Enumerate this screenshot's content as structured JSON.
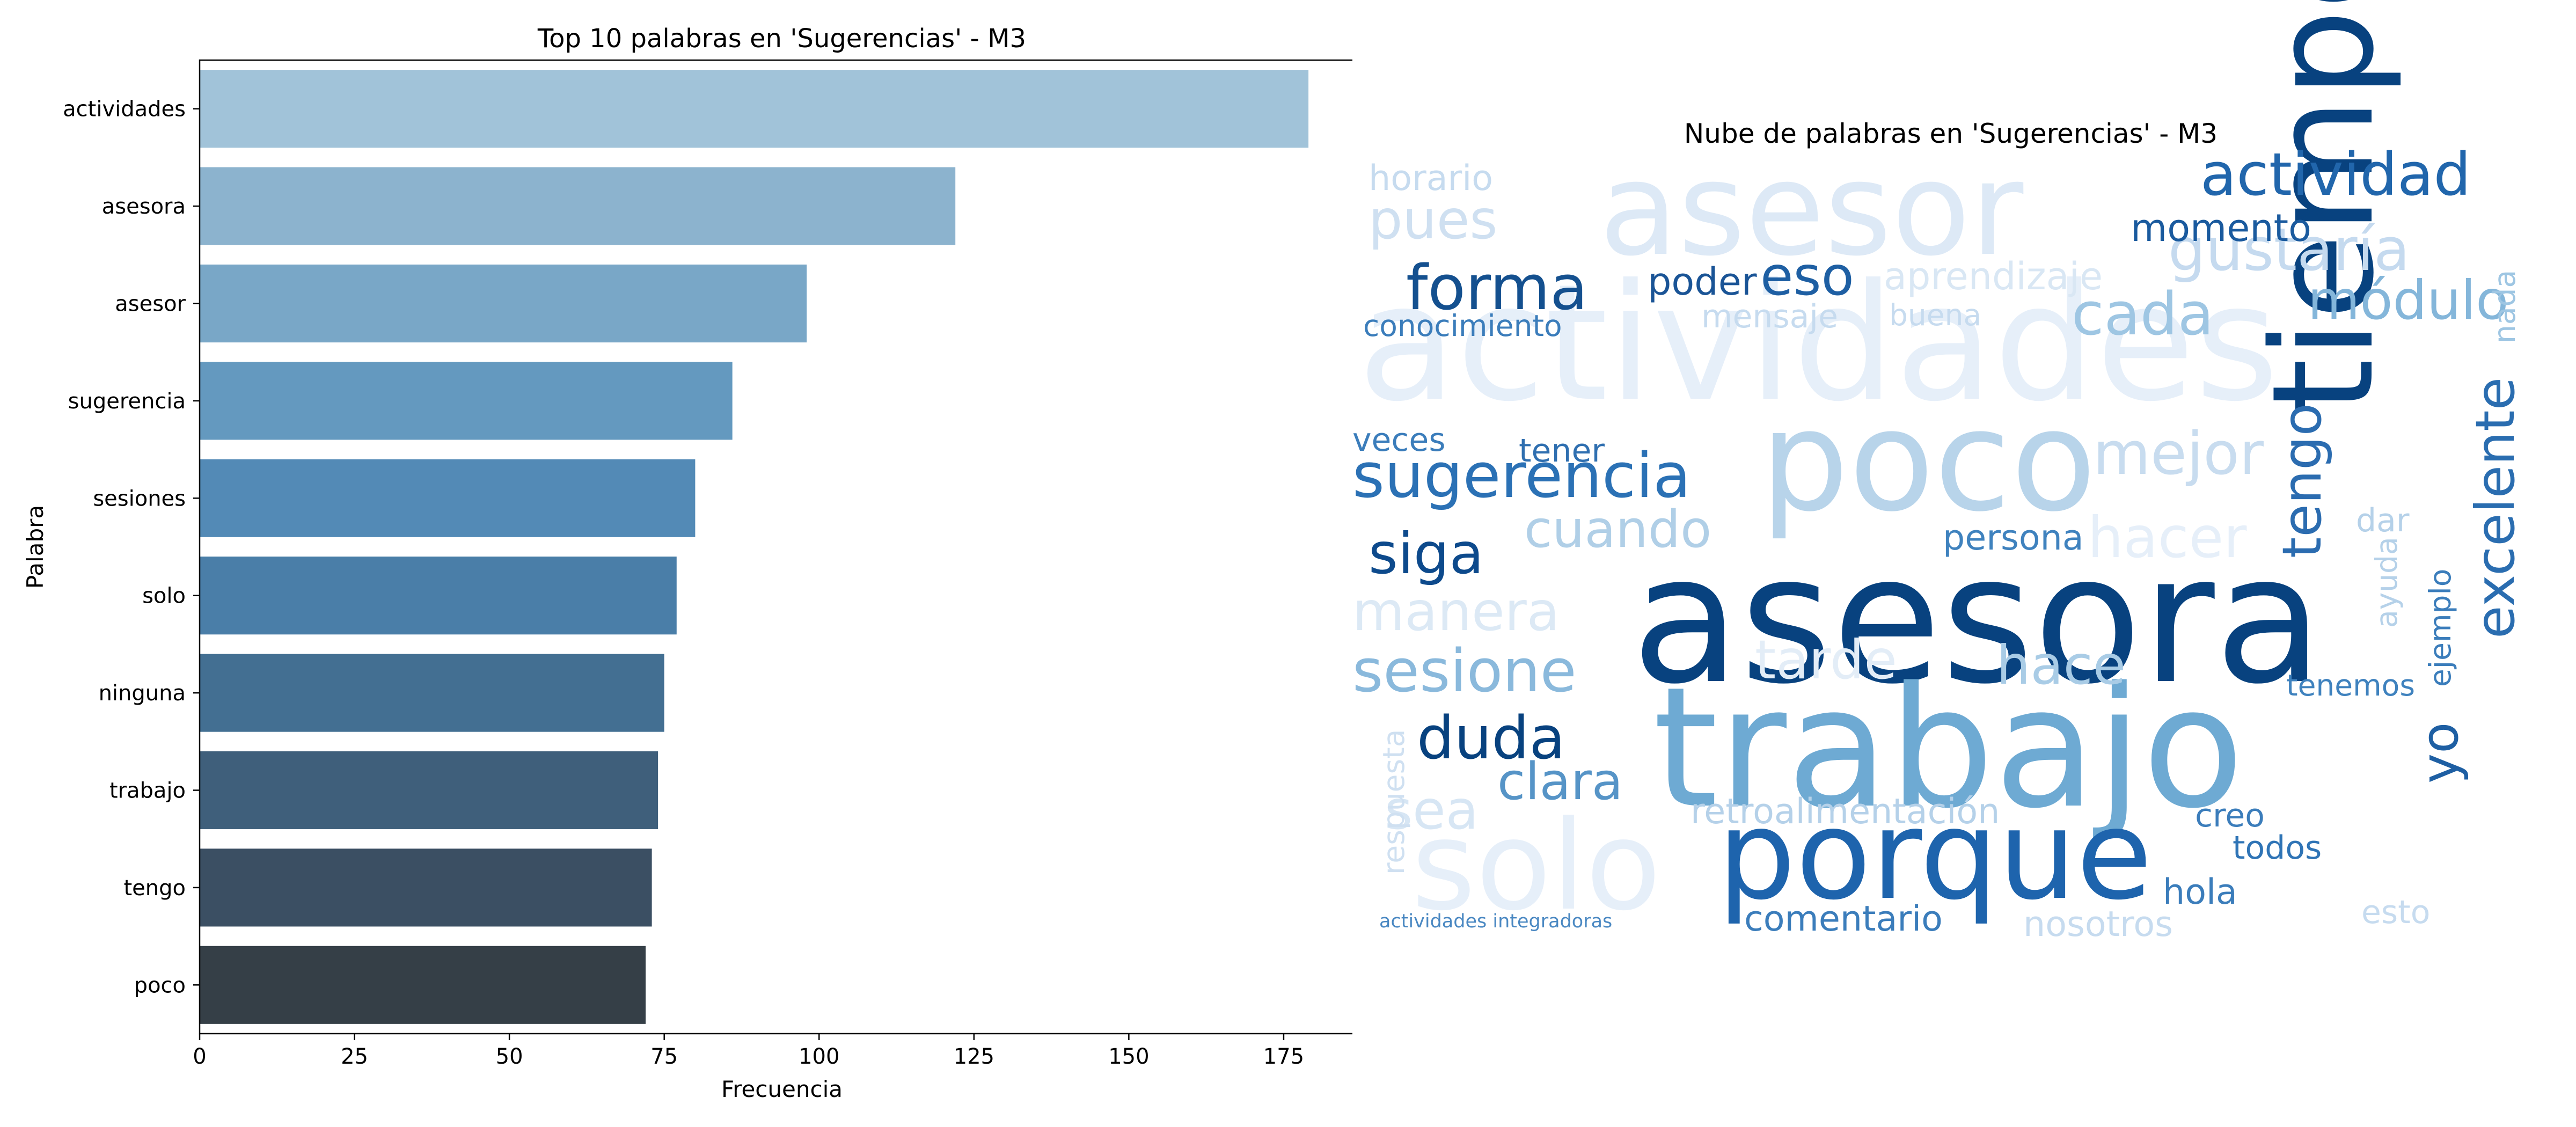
{
  "chart_data": [
    {
      "type": "bar",
      "orientation": "horizontal",
      "title": "Top 10 palabras en 'Sugerencias' - M3",
      "xlabel": "Frecuencia",
      "ylabel": "Palabra",
      "categories": [
        "actividades",
        "asesora",
        "asesor",
        "sugerencia",
        "sesiones",
        "solo",
        "ninguna",
        "trabajo",
        "tengo",
        "poco"
      ],
      "values": [
        179,
        122,
        98,
        86,
        80,
        77,
        75,
        74,
        73,
        72
      ],
      "xlim": [
        0,
        188
      ],
      "xticks": [
        0,
        25,
        50,
        75,
        100,
        125,
        150,
        175
      ],
      "colors": [
        "#a1c3d9",
        "#8cb3ce",
        "#79a7c7",
        "#6499bf",
        "#538ab6",
        "#4a7ea8",
        "#436f92",
        "#3f5f7b",
        "#3b4f63",
        "#353f47"
      ]
    },
    {
      "type": "wordcloud",
      "title": "Nube de palabras en 'Sugerencias' - M3",
      "words": [
        {
          "text": "asesora",
          "color": "#08427f"
        },
        {
          "text": "trabajo",
          "color": "#6eaad3"
        },
        {
          "text": "actividades",
          "color": "#e6eff9"
        },
        {
          "text": "poco",
          "color": "#b8d4ea"
        },
        {
          "text": "asesor",
          "color": "#dde9f6"
        },
        {
          "text": "tiempo",
          "color": "#08427f"
        },
        {
          "text": "porque",
          "color": "#1e64ad"
        },
        {
          "text": "solo",
          "color": "#e6eff9"
        },
        {
          "text": "actividad",
          "color": "#2166ac"
        },
        {
          "text": "sugerencia",
          "color": "#2b71b5"
        },
        {
          "text": "gustaría",
          "color": "#c5daef"
        },
        {
          "text": "módulo",
          "color": "#84b6da"
        },
        {
          "text": "forma",
          "color": "#14508f"
        },
        {
          "text": "cada",
          "color": "#9ec6e3"
        },
        {
          "text": "mejor",
          "color": "#c8dcef"
        },
        {
          "text": "excelente",
          "color": "#2a6db0"
        },
        {
          "text": "tengo",
          "color": "#2b6cb0"
        },
        {
          "text": "sesione",
          "color": "#8ab9dc"
        },
        {
          "text": "duda",
          "color": "#08427f"
        },
        {
          "text": "clara",
          "color": "#5694c7"
        },
        {
          "text": "siga",
          "color": "#0d4a8c"
        },
        {
          "text": "cuando",
          "color": "#b0cfe7"
        },
        {
          "text": "manera",
          "color": "#dce9f5"
        },
        {
          "text": "tarde",
          "color": "#e3edf7"
        },
        {
          "text": "hace",
          "color": "#a9cce6"
        },
        {
          "text": "hacer",
          "color": "#e6eff9"
        },
        {
          "text": "eso",
          "color": "#1e5fa3"
        },
        {
          "text": "poder",
          "color": "#1a5496"
        },
        {
          "text": "pues",
          "color": "#cfe0f1"
        },
        {
          "text": "momento",
          "color": "#1a5a9e"
        },
        {
          "text": "aprendizaje",
          "color": "#d9e7f4"
        },
        {
          "text": "mensaje",
          "color": "#c6dbef"
        },
        {
          "text": "sea",
          "color": "#d7e6f4"
        },
        {
          "text": "persona",
          "color": "#3f82be"
        },
        {
          "text": "yo",
          "color": "#1e5fa3"
        },
        {
          "text": "horario",
          "color": "#c6dbef"
        },
        {
          "text": "conocimiento",
          "color": "#3b7dbb"
        },
        {
          "text": "retroalimentación",
          "color": "#b5d1e9"
        },
        {
          "text": "comentario",
          "color": "#3b7dbb"
        },
        {
          "text": "nosotros",
          "color": "#c6dbef"
        },
        {
          "text": "hola",
          "color": "#3b7dbb"
        },
        {
          "text": "creo",
          "color": "#3b7dbb"
        },
        {
          "text": "todos",
          "color": "#2f74b6"
        },
        {
          "text": "tener",
          "color": "#2f6fb0"
        },
        {
          "text": "veces",
          "color": "#3b7dbb"
        },
        {
          "text": "respuesta",
          "color": "#cfe0f1"
        },
        {
          "text": "tenemos",
          "color": "#3f82be"
        },
        {
          "text": "ejemplo",
          "color": "#3b7dbb"
        },
        {
          "text": "nada",
          "color": "#9ec6e3"
        },
        {
          "text": "dar",
          "color": "#b5d1e9"
        },
        {
          "text": "esto",
          "color": "#c6dbef"
        },
        {
          "text": "ayuda",
          "color": "#b5d1e9"
        },
        {
          "text": "buena",
          "color": "#c6dbef"
        },
        {
          "text": "actividades integradoras",
          "color": "#4a88c2"
        }
      ]
    }
  ]
}
